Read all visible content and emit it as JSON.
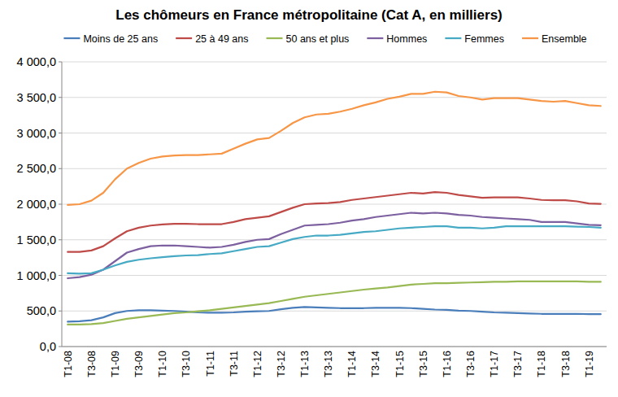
{
  "chart_data": {
    "type": "line",
    "title": "Les chômeurs en France métropolitaine (Cat A, en milliers)",
    "categories": [
      "T1-08",
      null,
      "T3-08",
      null,
      "T1-09",
      null,
      "T3-09",
      null,
      "T1-10",
      null,
      "T3-10",
      null,
      "T1-11",
      null,
      "T3-11",
      null,
      "T1-12",
      null,
      "T3-12",
      null,
      "T1-13",
      null,
      "T3-13",
      null,
      "T1-14",
      null,
      "T3-14",
      null,
      "T1-15",
      null,
      "T3-15",
      null,
      "T1-16",
      null,
      "T3-16",
      null,
      "T1-17",
      null,
      "T3-17",
      null,
      "T1-18",
      null,
      "T3-18",
      null,
      "T1-19",
      null
    ],
    "series": [
      {
        "name": "Moins de 25 ans",
        "color": "#4a7ebb",
        "values": [
          350,
          355,
          370,
          410,
          470,
          500,
          510,
          510,
          505,
          500,
          490,
          480,
          475,
          475,
          480,
          490,
          495,
          500,
          525,
          545,
          555,
          550,
          545,
          540,
          540,
          540,
          545,
          545,
          545,
          540,
          530,
          520,
          515,
          505,
          500,
          490,
          480,
          475,
          470,
          465,
          460,
          460,
          460,
          460,
          455,
          455
        ]
      },
      {
        "name": "25 à 49 ans",
        "color": "#be4b48",
        "values": [
          1330,
          1330,
          1350,
          1410,
          1520,
          1620,
          1670,
          1700,
          1715,
          1725,
          1725,
          1720,
          1720,
          1720,
          1750,
          1790,
          1810,
          1830,
          1890,
          1950,
          2000,
          2010,
          2015,
          2030,
          2060,
          2080,
          2100,
          2120,
          2140,
          2160,
          2150,
          2170,
          2160,
          2130,
          2110,
          2090,
          2095,
          2095,
          2095,
          2080,
          2060,
          2055,
          2055,
          2040,
          2010,
          2005
        ]
      },
      {
        "name": "50 ans et plus",
        "color": "#98b954",
        "values": [
          310,
          310,
          315,
          330,
          360,
          390,
          410,
          430,
          450,
          470,
          480,
          495,
          510,
          530,
          550,
          570,
          590,
          610,
          640,
          670,
          700,
          720,
          740,
          760,
          780,
          800,
          815,
          830,
          850,
          870,
          880,
          890,
          890,
          895,
          900,
          905,
          910,
          910,
          915,
          915,
          915,
          915,
          915,
          915,
          910,
          910
        ]
      },
      {
        "name": "Hommes",
        "color": "#7d60a0",
        "values": [
          960,
          975,
          1010,
          1080,
          1200,
          1320,
          1370,
          1410,
          1420,
          1420,
          1410,
          1400,
          1390,
          1400,
          1430,
          1470,
          1500,
          1510,
          1580,
          1640,
          1700,
          1710,
          1720,
          1740,
          1770,
          1790,
          1820,
          1840,
          1860,
          1880,
          1870,
          1880,
          1870,
          1850,
          1840,
          1820,
          1810,
          1800,
          1790,
          1780,
          1750,
          1750,
          1750,
          1730,
          1710,
          1705
        ]
      },
      {
        "name": "Femmes",
        "color": "#46aac5",
        "values": [
          1030,
          1025,
          1030,
          1080,
          1140,
          1190,
          1220,
          1240,
          1255,
          1270,
          1280,
          1285,
          1300,
          1310,
          1340,
          1370,
          1400,
          1410,
          1460,
          1510,
          1540,
          1560,
          1560,
          1570,
          1590,
          1610,
          1620,
          1640,
          1660,
          1670,
          1680,
          1690,
          1690,
          1670,
          1670,
          1660,
          1670,
          1690,
          1690,
          1690,
          1690,
          1690,
          1690,
          1685,
          1680,
          1670
        ]
      },
      {
        "name": "Ensemble",
        "color": "#f79646",
        "values": [
          1990,
          2000,
          2050,
          2160,
          2350,
          2500,
          2580,
          2640,
          2670,
          2685,
          2690,
          2690,
          2700,
          2710,
          2780,
          2850,
          2910,
          2930,
          3030,
          3140,
          3220,
          3260,
          3270,
          3300,
          3340,
          3390,
          3430,
          3480,
          3510,
          3550,
          3550,
          3580,
          3570,
          3520,
          3500,
          3470,
          3490,
          3490,
          3490,
          3470,
          3450,
          3440,
          3450,
          3420,
          3390,
          3380
        ]
      }
    ],
    "ylim": [
      0,
      4000
    ],
    "yticks": [
      {
        "value": 0,
        "label": "0,0"
      },
      {
        "value": 500,
        "label": "500,0"
      },
      {
        "value": 1000,
        "label": "1 000,0"
      },
      {
        "value": 1500,
        "label": "1 500,0"
      },
      {
        "value": 2000,
        "label": "2 000,0"
      },
      {
        "value": 2500,
        "label": "2 500,0"
      },
      {
        "value": 3000,
        "label": "3 000,0"
      },
      {
        "value": 3500,
        "label": "3 500,0"
      },
      {
        "value": 4000,
        "label": "4 000,0"
      }
    ],
    "grid": true,
    "legend": "top"
  }
}
